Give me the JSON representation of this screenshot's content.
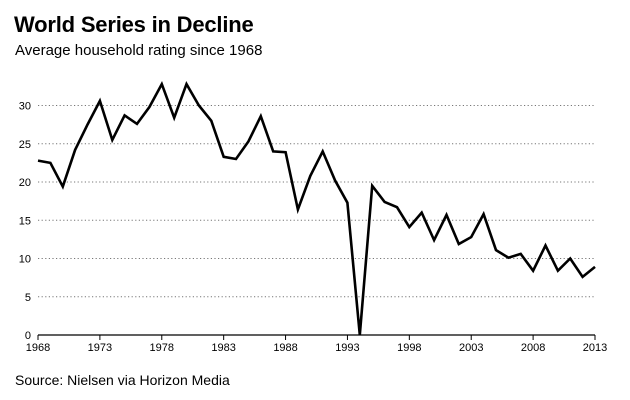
{
  "header": {
    "title": "World Series in Decline",
    "subtitle": "Average household rating since 1968"
  },
  "footer": {
    "source": "Source: Nielsen via Horizon Media"
  },
  "colors": {
    "line": "#000000",
    "grid": "#777777",
    "background": "#ffffff"
  },
  "chart_data": {
    "type": "line",
    "title": "World Series in Decline",
    "subtitle": "Average household rating since 1968",
    "xlabel": "",
    "ylabel": "",
    "xlim": [
      1968,
      2013
    ],
    "ylim": [
      0,
      33
    ],
    "x_ticks": [
      1968,
      1973,
      1978,
      1983,
      1988,
      1993,
      1998,
      2003,
      2008,
      2013
    ],
    "y_ticks": [
      0,
      5,
      10,
      15,
      20,
      25,
      30
    ],
    "grid": "horizontal dotted",
    "legend": "none",
    "series": [
      {
        "x": [
          1968,
          1969,
          1970,
          1971,
          1972,
          1973,
          1974,
          1975,
          1976,
          1977,
          1978,
          1979,
          1980,
          1981,
          1982,
          1983,
          1984,
          1985,
          1986,
          1987,
          1988,
          1989,
          1990,
          1991,
          1992,
          1993,
          1994,
          1995,
          1996,
          1997,
          1998,
          1999,
          2000,
          2001,
          2002,
          2003,
          2004,
          2005,
          2006,
          2007,
          2008,
          2009,
          2010,
          2011,
          2012,
          2013
        ],
        "values": [
          22.8,
          22.5,
          19.4,
          24.2,
          27.5,
          30.6,
          25.5,
          28.7,
          27.6,
          29.8,
          32.8,
          28.4,
          32.8,
          30.0,
          28.0,
          23.3,
          23.0,
          25.3,
          28.6,
          24.0,
          23.9,
          16.4,
          20.8,
          24.0,
          20.2,
          17.3,
          0.0,
          19.5,
          17.4,
          16.7,
          14.1,
          16.0,
          12.4,
          15.7,
          11.9,
          12.8,
          15.8,
          11.1,
          10.1,
          10.6,
          8.4,
          11.7,
          8.4,
          10.0,
          7.6,
          8.9
        ]
      }
    ]
  }
}
